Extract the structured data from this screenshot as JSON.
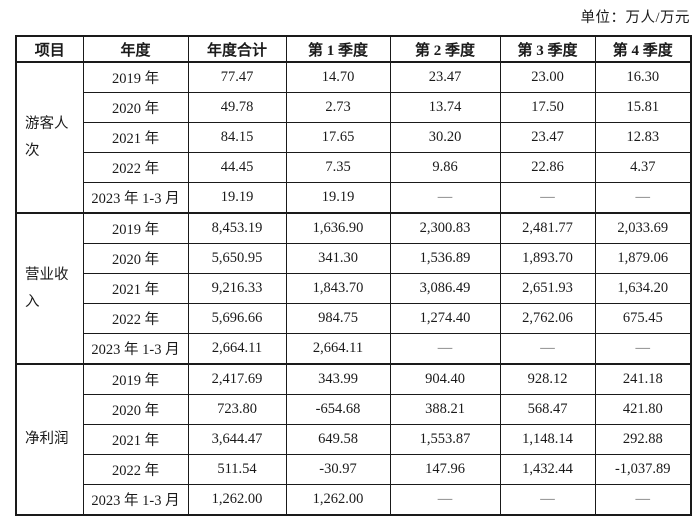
{
  "unit_label": "单位：万人/万元",
  "colors": {
    "border": "#1a1a1a",
    "text": "#1a1a1a",
    "background": "#ffffff",
    "dash": "#6b6b6b"
  },
  "table": {
    "columns": [
      "项目",
      "年度",
      "年度合计",
      "第 1 季度",
      "第 2 季度",
      "第 3 季度",
      "第 4 季度"
    ],
    "dash": "—",
    "groups": [
      {
        "label": "游客人次",
        "rows": [
          {
            "year": "2019 年",
            "values": [
              "77.47",
              "14.70",
              "23.47",
              "23.00",
              "16.30"
            ]
          },
          {
            "year": "2020 年",
            "values": [
              "49.78",
              "2.73",
              "13.74",
              "17.50",
              "15.81"
            ]
          },
          {
            "year": "2021 年",
            "values": [
              "84.15",
              "17.65",
              "30.20",
              "23.47",
              "12.83"
            ]
          },
          {
            "year": "2022 年",
            "values": [
              "44.45",
              "7.35",
              "9.86",
              "22.86",
              "4.37"
            ]
          },
          {
            "year": "2023 年 1-3 月",
            "values": [
              "19.19",
              "19.19",
              "—",
              "—",
              "—"
            ]
          }
        ]
      },
      {
        "label": "营业收入",
        "rows": [
          {
            "year": "2019 年",
            "values": [
              "8,453.19",
              "1,636.90",
              "2,300.83",
              "2,481.77",
              "2,033.69"
            ]
          },
          {
            "year": "2020 年",
            "values": [
              "5,650.95",
              "341.30",
              "1,536.89",
              "1,893.70",
              "1,879.06"
            ]
          },
          {
            "year": "2021 年",
            "values": [
              "9,216.33",
              "1,843.70",
              "3,086.49",
              "2,651.93",
              "1,634.20"
            ]
          },
          {
            "year": "2022 年",
            "values": [
              "5,696.66",
              "984.75",
              "1,274.40",
              "2,762.06",
              "675.45"
            ]
          },
          {
            "year": "2023 年 1-3 月",
            "values": [
              "2,664.11",
              "2,664.11",
              "—",
              "—",
              "—"
            ]
          }
        ]
      },
      {
        "label": "净利润",
        "rows": [
          {
            "year": "2019 年",
            "values": [
              "2,417.69",
              "343.99",
              "904.40",
              "928.12",
              "241.18"
            ]
          },
          {
            "year": "2020 年",
            "values": [
              "723.80",
              "-654.68",
              "388.21",
              "568.47",
              "421.80"
            ]
          },
          {
            "year": "2021 年",
            "values": [
              "3,644.47",
              "649.58",
              "1,553.87",
              "1,148.14",
              "292.88"
            ]
          },
          {
            "year": "2022 年",
            "values": [
              "511.54",
              "-30.97",
              "147.96",
              "1,432.44",
              "-1,037.89"
            ]
          },
          {
            "year": "2023 年 1-3 月",
            "values": [
              "1,262.00",
              "1,262.00",
              "—",
              "—",
              "—"
            ]
          }
        ]
      }
    ]
  }
}
